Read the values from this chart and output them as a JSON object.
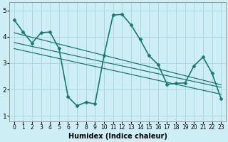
{
  "xlabel": "Humidex (Indice chaleur)",
  "background_color": "#cdeef5",
  "grid_color": "#aed8e0",
  "line_color": "#1a7a6e",
  "xlim": [
    -0.5,
    23.5
  ],
  "ylim": [
    0.8,
    5.3
  ],
  "yticks": [
    1,
    2,
    3,
    4,
    5
  ],
  "xticks": [
    0,
    1,
    2,
    3,
    4,
    5,
    6,
    7,
    8,
    9,
    10,
    11,
    12,
    13,
    14,
    15,
    16,
    17,
    18,
    19,
    20,
    21,
    22,
    23
  ],
  "series": [
    {
      "x": [
        0,
        1,
        2,
        3,
        4,
        5,
        6,
        7,
        8,
        9,
        10,
        11,
        12,
        13,
        14,
        15,
        16,
        17,
        18,
        19,
        20,
        21,
        22,
        23
      ],
      "y": [
        4.65,
        4.18,
        3.76,
        4.15,
        4.18,
        3.55,
        1.72,
        1.38,
        1.52,
        1.45,
        3.28,
        4.82,
        4.85,
        4.45,
        3.9,
        3.28,
        2.95,
        2.2,
        2.23,
        2.25,
        2.9,
        3.23,
        2.62,
        1.65
      ],
      "lw": 1.2,
      "marker": true
    },
    {
      "x": [
        0,
        23
      ],
      "y": [
        4.15,
        2.18
      ],
      "lw": 0.9,
      "marker": false
    },
    {
      "x": [
        0,
        23
      ],
      "y": [
        3.78,
        2.08
      ],
      "lw": 0.9,
      "marker": false
    },
    {
      "x": [
        0,
        23
      ],
      "y": [
        3.55,
        1.82
      ],
      "lw": 0.9,
      "marker": false
    }
  ],
  "marker_symbol": "D",
  "marker_size": 2.5,
  "tick_fontsize": 6,
  "xlabel_fontsize": 7
}
